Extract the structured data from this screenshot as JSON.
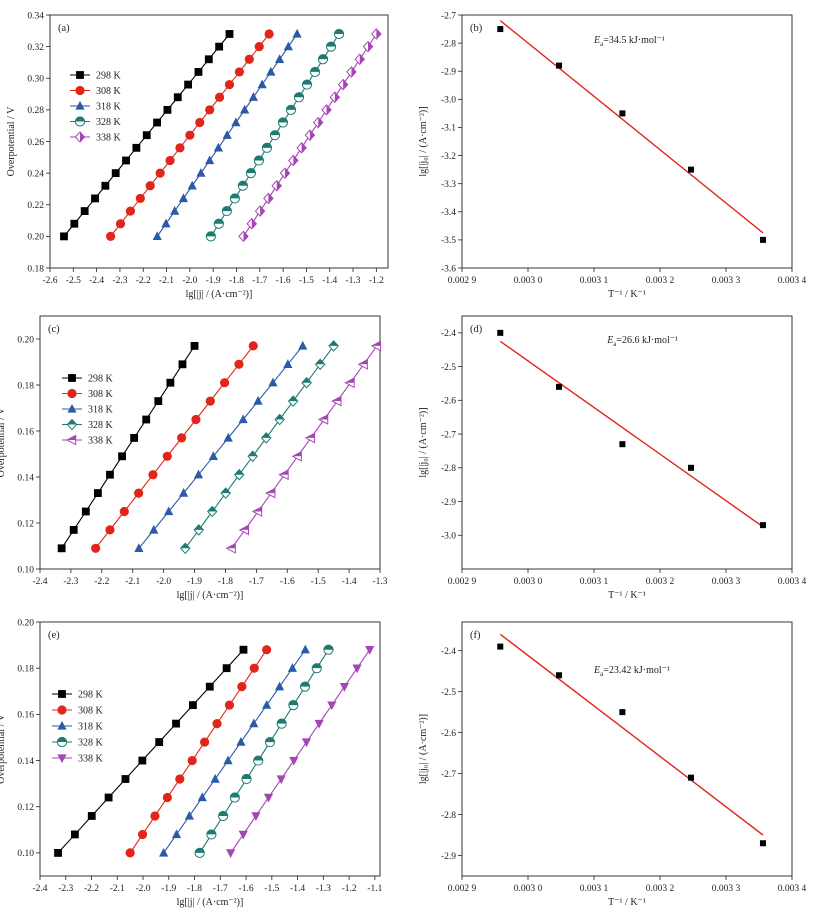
{
  "chart_data": [
    {
      "id": "a",
      "type": "line",
      "panel_label": "(a)",
      "xlabel": "lg[|j| / (A·cm⁻²)]",
      "ylabel": "Overpotential / V",
      "xlim": [
        -2.6,
        -1.15
      ],
      "ylim": [
        0.18,
        0.34
      ],
      "xticks": [
        -2.6,
        -2.5,
        -2.4,
        -2.3,
        -2.2,
        -2.1,
        -2.0,
        -1.9,
        -1.8,
        -1.7,
        -1.6,
        -1.5,
        -1.4,
        -1.3,
        -1.2
      ],
      "xtick_labels": [
        "-2.6",
        "-2.5",
        "-2.4",
        "-2.3",
        "-2.2",
        "-2.1",
        "-2.0",
        "-1.9",
        "-1.8",
        "-1.7",
        "-1.6",
        "-1.5",
        "-1.4",
        "-1.3",
        "-1.2"
      ],
      "yticks": [
        0.18,
        0.2,
        0.22,
        0.24,
        0.26,
        0.28,
        0.3,
        0.32,
        0.34
      ],
      "ytick_labels": [
        "0.18",
        "0.20",
        "0.22",
        "0.24",
        "0.26",
        "0.28",
        "0.30",
        "0.32",
        "0.34"
      ],
      "legend": "upper-left",
      "y_points": [
        0.2,
        0.208,
        0.216,
        0.224,
        0.232,
        0.24,
        0.248,
        0.256,
        0.264,
        0.272,
        0.28,
        0.288,
        0.296,
        0.304,
        0.312,
        0.32,
        0.328
      ],
      "series": [
        {
          "name": "298 K",
          "color": "#000000",
          "marker": "square",
          "x0": -2.54,
          "x1": -1.83
        },
        {
          "name": "308 K",
          "color": "#e0261b",
          "marker": "circle",
          "x0": -2.34,
          "x1": -1.66
        },
        {
          "name": "318 K",
          "color": "#2b5aa6",
          "marker": "triangle-up",
          "x0": -2.14,
          "x1": -1.54
        },
        {
          "name": "328 K",
          "color": "#1f7a72",
          "marker": "half-circle",
          "x0": -1.91,
          "x1": -1.36
        },
        {
          "name": "338 K",
          "color": "#a546b5",
          "marker": "half-diamond",
          "x0": -1.77,
          "x1": -1.2
        }
      ]
    },
    {
      "id": "b",
      "type": "scatter",
      "panel_label": "(b)",
      "xlabel": "T⁻¹ / K⁻¹",
      "ylabel": "lg[|j₀| / (A·cm⁻²)]",
      "xlim": [
        0.0029,
        0.0034
      ],
      "ylim": [
        -3.6,
        -2.7
      ],
      "xticks": [
        0.0029,
        0.003,
        0.0031,
        0.0032,
        0.0033,
        0.0034
      ],
      "xtick_labels": [
        "0.002 9",
        "0.003 0",
        "0.003 1",
        "0.003 2",
        "0.003 3",
        "0.003 4"
      ],
      "yticks": [
        -3.6,
        -3.5,
        -3.4,
        -3.3,
        -3.2,
        -3.1,
        -3.0,
        -2.9,
        -2.8,
        -2.7
      ],
      "ytick_labels": [
        "-3.6",
        "-3.5",
        "-3.4",
        "-3.3",
        "-3.2",
        "-3.1",
        "-3.0",
        "-2.9",
        "-2.8",
        "-2.7"
      ],
      "x": [
        0.002958,
        0.003047,
        0.003143,
        0.003247,
        0.003356
      ],
      "y": [
        -2.75,
        -2.88,
        -3.05,
        -3.25,
        -3.5
      ],
      "fit": {
        "x0": 0.002958,
        "y0": -2.72,
        "x1": 0.003356,
        "y1": -3.475,
        "color": "#e0261b"
      },
      "annotation": {
        "symbol": "E",
        "subscript": "a",
        "text": "=34.5 kJ·mol⁻¹",
        "x": 0.0031,
        "y": -2.8
      }
    },
    {
      "id": "c",
      "type": "line",
      "panel_label": "(c)",
      "xlabel": "lg[|j| / (A·cm⁻²)]",
      "ylabel": "Overpotential / V",
      "xlim": [
        -2.4,
        -1.3
      ],
      "ylim": [
        0.1,
        0.21
      ],
      "xticks": [
        -2.4,
        -2.3,
        -2.2,
        -2.1,
        -2.0,
        -1.9,
        -1.8,
        -1.7,
        -1.6,
        -1.5,
        -1.4,
        -1.3
      ],
      "xtick_labels": [
        "-2.4",
        "-2.3",
        "-2.2",
        "-2.1",
        "-2.0",
        "-1.9",
        "-1.8",
        "-1.7",
        "-1.6",
        "-1.5",
        "-1.4",
        "-1.3"
      ],
      "yticks": [
        0.1,
        0.12,
        0.14,
        0.16,
        0.18,
        0.2
      ],
      "ytick_labels": [
        "0.10",
        "0.12",
        "0.14",
        "0.16",
        "0.18",
        "0.20"
      ],
      "legend": "upper-left",
      "y_points": [
        0.109,
        0.117,
        0.125,
        0.133,
        0.141,
        0.149,
        0.157,
        0.165,
        0.173,
        0.181,
        0.189,
        0.197
      ],
      "series": [
        {
          "name": "298 K",
          "color": "#000000",
          "marker": "square",
          "x0": -2.33,
          "x1": -1.9
        },
        {
          "name": "308 K",
          "color": "#e0261b",
          "marker": "circle",
          "x0": -2.22,
          "x1": -1.71
        },
        {
          "name": "318 K",
          "color": "#2b5aa6",
          "marker": "triangle-up",
          "x0": -2.08,
          "x1": -1.55
        },
        {
          "name": "328 K",
          "color": "#1f7a72",
          "marker": "diamond",
          "x0": -1.93,
          "x1": -1.45
        },
        {
          "name": "338 K",
          "color": "#a546b5",
          "marker": "triangle-left",
          "x0": -1.78,
          "x1": -1.31
        }
      ]
    },
    {
      "id": "d",
      "type": "scatter",
      "panel_label": "(d)",
      "xlabel": "T⁻¹ / K⁻¹",
      "ylabel": "lg[|j₀| / (A·cm⁻²)]",
      "xlim": [
        0.0029,
        0.0034
      ],
      "ylim": [
        -3.1,
        -2.35
      ],
      "xticks": [
        0.0029,
        0.003,
        0.0031,
        0.0032,
        0.0033,
        0.0034
      ],
      "xtick_labels": [
        "0.002 9",
        "0.003 0",
        "0.003 1",
        "0.003 2",
        "0.003 3",
        "0.003 4"
      ],
      "yticks": [
        -3.0,
        -2.9,
        -2.8,
        -2.7,
        -2.6,
        -2.5,
        -2.4
      ],
      "ytick_labels": [
        "-3.0",
        "-2.9",
        "-2.8",
        "-2.7",
        "-2.6",
        "-2.5",
        "-2.4"
      ],
      "x": [
        0.002958,
        0.003047,
        0.003143,
        0.003247,
        0.003356
      ],
      "y": [
        -2.4,
        -2.56,
        -2.73,
        -2.8,
        -2.97
      ],
      "fit": {
        "x0": 0.002958,
        "y0": -2.425,
        "x1": 0.003356,
        "y1": -2.975,
        "color": "#e0261b"
      },
      "annotation": {
        "symbol": "E",
        "subscript": "a",
        "text": "=26.6 kJ·mol⁻¹",
        "x": 0.00312,
        "y": -2.43
      }
    },
    {
      "id": "e",
      "type": "line",
      "panel_label": "(e)",
      "xlabel": "lg[|j| / (A·cm⁻²)]",
      "ylabel": "Overpotential / V",
      "xlim": [
        -2.4,
        -1.08
      ],
      "ylim": [
        0.09,
        0.2
      ],
      "xticks": [
        -2.4,
        -2.3,
        -2.2,
        -2.1,
        -2.0,
        -1.9,
        -1.8,
        -1.7,
        -1.6,
        -1.5,
        -1.4,
        -1.3,
        -1.2,
        -1.1
      ],
      "xtick_labels": [
        "-2.4",
        "-2.3",
        "-2.2",
        "-2.1",
        "-2.0",
        "-1.9",
        "-1.8",
        "-1.7",
        "-1.6",
        "-1.5",
        "-1.4",
        "-1.3",
        "-1.2",
        "-1.1"
      ],
      "yticks": [
        0.1,
        0.12,
        0.14,
        0.16,
        0.18,
        0.2
      ],
      "ytick_labels": [
        "0.10",
        "0.12",
        "0.14",
        "0.16",
        "0.18",
        "0.20"
      ],
      "legend": "left",
      "y_points": [
        0.1,
        0.108,
        0.116,
        0.124,
        0.132,
        0.14,
        0.148,
        0.156,
        0.164,
        0.172,
        0.18,
        0.188
      ],
      "series": [
        {
          "name": "298 K",
          "color": "#000000",
          "marker": "square",
          "x0": -2.33,
          "x1": -1.61
        },
        {
          "name": "308 K",
          "color": "#e0261b",
          "marker": "circle",
          "x0": -2.05,
          "x1": -1.52
        },
        {
          "name": "318 K",
          "color": "#2b5aa6",
          "marker": "triangle-up",
          "x0": -1.92,
          "x1": -1.37
        },
        {
          "name": "328 K",
          "color": "#1f7a72",
          "marker": "half-circle",
          "x0": -1.78,
          "x1": -1.28
        },
        {
          "name": "338 K",
          "color": "#a546b5",
          "marker": "triangle-down",
          "x0": -1.66,
          "x1": -1.12
        }
      ]
    },
    {
      "id": "f",
      "type": "scatter",
      "panel_label": "(f)",
      "xlabel": "T⁻¹ / K⁻¹",
      "ylabel": "lg[|j₀| / (A·cm⁻²)]",
      "xlim": [
        0.0029,
        0.0034
      ],
      "ylim": [
        -2.95,
        -2.33
      ],
      "xticks": [
        0.0029,
        0.003,
        0.0031,
        0.0032,
        0.0033,
        0.0034
      ],
      "xtick_labels": [
        "0.002 9",
        "0.003 0",
        "0.003 1",
        "0.003 2",
        "0.003 3",
        "0.003 4"
      ],
      "yticks": [
        -2.9,
        -2.8,
        -2.7,
        -2.6,
        -2.5,
        -2.4
      ],
      "ytick_labels": [
        "-2.9",
        "-2.8",
        "-2.7",
        "-2.6",
        "-2.5",
        "-2.4"
      ],
      "x": [
        0.002958,
        0.003047,
        0.003143,
        0.003247,
        0.003356
      ],
      "y": [
        -2.39,
        -2.46,
        -2.55,
        -2.71,
        -2.87
      ],
      "fit": {
        "x0": 0.002958,
        "y0": -2.36,
        "x1": 0.003356,
        "y1": -2.85,
        "color": "#e0261b"
      },
      "annotation": {
        "symbol": "E",
        "subscript": "a",
        "text": "=23.42 kJ·mol⁻¹",
        "x": 0.0031,
        "y": -2.455
      }
    }
  ]
}
